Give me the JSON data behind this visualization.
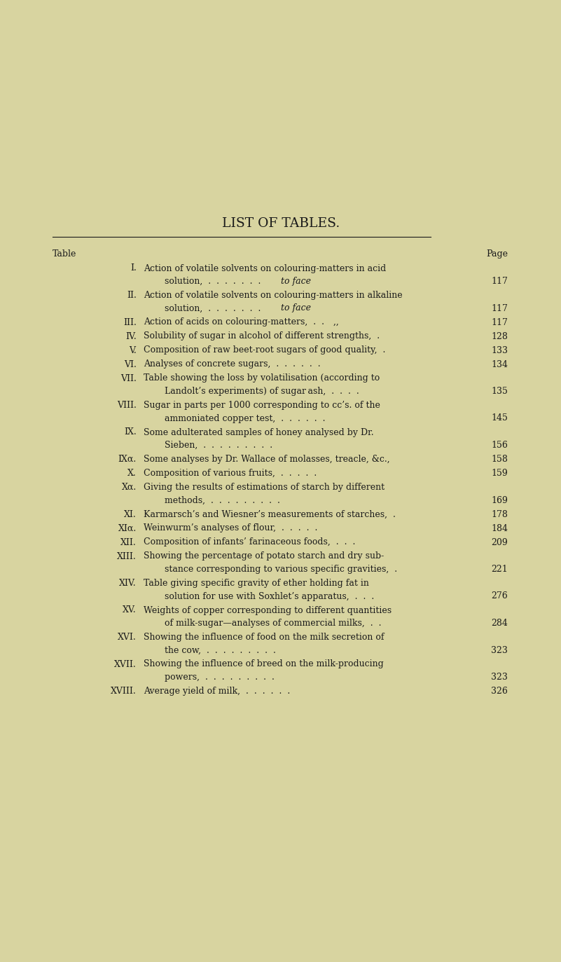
{
  "background_color": "#d8d4a0",
  "title": "LIST OF TABLES.",
  "title_fontsize": 13.5,
  "header_left": "Table",
  "header_right": "Page",
  "text_color": "#1a1a1a",
  "font_size": 9.0,
  "entries": [
    {
      "num": "I.",
      "line1": "Action of volatile solvents on colouring-matters in acid",
      "line2": "solution,  .  .  .  .  .  .  .  to face",
      "line2_italic_part": "to face",
      "page": "117",
      "two_lines": true
    },
    {
      "num": "II.",
      "line1": "Action of volatile solvents on colouring-matters in alkaline",
      "line2": "solution,  .  .  .  .  .  .  .  to face",
      "line2_italic_part": "to face",
      "page": "117",
      "two_lines": true
    },
    {
      "num": "III.",
      "line1": "Action of acids on colouring-matters,  .  .    ,,",
      "line2": null,
      "line2_italic_part": null,
      "page": "117",
      "two_lines": false
    },
    {
      "num": "IV.",
      "line1": "Solubility of sugar in alcohol of different strengths,  .",
      "line2": null,
      "line2_italic_part": null,
      "page": "128",
      "two_lines": false
    },
    {
      "num": "V.",
      "line1": "Composition of raw beet-root sugars of good quality,  .",
      "line2": null,
      "line2_italic_part": null,
      "page": "133",
      "two_lines": false
    },
    {
      "num": "VI.",
      "line1": "Analyses of concrete sugars,  .  .  .  .  .  .",
      "line2": null,
      "line2_italic_part": null,
      "page": "134",
      "two_lines": false
    },
    {
      "num": "VII.",
      "line1": "Table showing the loss by volatilisation (according to",
      "line2": "Landolt’s experiments) of sugar ash,  .  .  .  .",
      "line2_italic_part": null,
      "page": "135",
      "two_lines": true
    },
    {
      "num": "VIII.",
      "line1": "Sugar in parts per 1000 corresponding to cc’s. of the",
      "line2": "ammoniated copper test,  .  .  .  .  .  .",
      "line2_italic_part": null,
      "page": "145",
      "two_lines": true
    },
    {
      "num": "IX.",
      "line1": "Some adulterated samples of honey analysed by Dr.",
      "line2": "Sieben,  .  .  .  .  .  .  .  .  .",
      "line2_italic_part": null,
      "page": "156",
      "two_lines": true
    },
    {
      "num": "IXα.",
      "line1": "Some analyses by Dr. Wallace of molasses, treacle, &c.,",
      "line2": null,
      "line2_italic_part": null,
      "page": "158",
      "two_lines": false
    },
    {
      "num": "X.",
      "line1": "Composition of various fruits,  .  .  .  .  .",
      "line2": null,
      "line2_italic_part": null,
      "page": "159",
      "two_lines": false
    },
    {
      "num": "Xα.",
      "line1": "Giving the results of estimations of starch by different",
      "line2": "methods,  .  .  .  .  .  .  .  .  .",
      "line2_italic_part": null,
      "page": "169",
      "two_lines": true
    },
    {
      "num": "XI.",
      "line1": "Karmarsch’s and Wiesner’s measurements of starches,  .",
      "line2": null,
      "line2_italic_part": null,
      "page": "178",
      "two_lines": false
    },
    {
      "num": "XIα.",
      "line1": "Weinwurm’s analyses of flour,  .  .  .  .  .",
      "line2": null,
      "line2_italic_part": null,
      "page": "184",
      "two_lines": false
    },
    {
      "num": "XII.",
      "line1": "Composition of infants’ farinaceous foods,  .  .  .",
      "line2": null,
      "line2_italic_part": null,
      "page": "209",
      "two_lines": false
    },
    {
      "num": "XIII.",
      "line1": "Showing the percentage of potato starch and dry sub-",
      "line2": "stance corresponding to various specific gravities,  .",
      "line2_italic_part": null,
      "page": "221",
      "two_lines": true
    },
    {
      "num": "XIV.",
      "line1": "Table giving specific gravity of ether holding fat in",
      "line2": "solution for use with Soxhlet’s apparatus,  .  .  .",
      "line2_italic_part": null,
      "page": "276",
      "two_lines": true
    },
    {
      "num": "XV.",
      "line1": "Weights of copper corresponding to different quantities",
      "line2": "of milk-sugar—analyses of commercial milks,  .  .",
      "line2_italic_part": null,
      "page": "284",
      "two_lines": true
    },
    {
      "num": "XVI.",
      "line1": "Showing the influence of food on the milk secretion of",
      "line2": "the cow,  .  .  .  .  .  .  .  .  .",
      "line2_italic_part": null,
      "page": "323",
      "two_lines": true
    },
    {
      "num": "XVII.",
      "line1": "Showing the influence of breed on the milk-producing",
      "line2": "powers,  .  .  .  .  .  .  .  .  .",
      "line2_italic_part": null,
      "page": "323",
      "two_lines": true
    },
    {
      "num": "XVIII.",
      "line1": "Average yield of milk,  .  .  .  .  .  .",
      "line2": null,
      "line2_italic_part": null,
      "page": "326",
      "two_lines": false
    }
  ]
}
